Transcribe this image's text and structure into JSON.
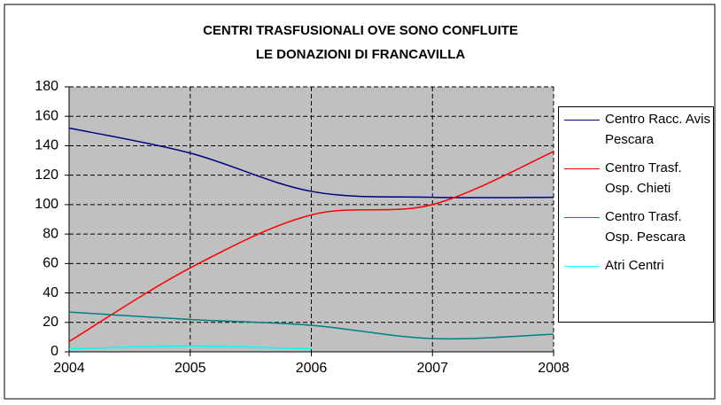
{
  "chart_data": {
    "type": "line",
    "title": [
      "CENTRI TRASFUSIONALI OVE SONO CONFLUITE",
      "LE DONAZIONI DI FRANCAVILLA"
    ],
    "x": [
      2004,
      2005,
      2006,
      2007,
      2008
    ],
    "series": [
      {
        "name": "Centro Racc. Avis Pescara",
        "color": "#000080",
        "values": [
          152,
          135,
          109,
          105,
          105
        ]
      },
      {
        "name": "Centro Trasf. Osp. Chieti",
        "color": "#ff0000",
        "values": [
          7,
          57,
          93,
          100,
          136
        ]
      },
      {
        "name": "Centro Trasf. Osp. Pescara",
        "color": "#008080",
        "values": [
          27,
          22,
          18,
          9,
          12
        ]
      },
      {
        "name": "Atri Centri",
        "color": "#00ffff",
        "values": [
          2,
          4,
          2,
          null,
          null
        ]
      }
    ],
    "xlim": [
      2004,
      2008
    ],
    "xticks": [
      2004,
      2005,
      2006,
      2007,
      2008
    ],
    "ylim": [
      0,
      180
    ],
    "yticks": [
      0,
      20,
      40,
      60,
      80,
      100,
      120,
      140,
      160,
      180
    ],
    "grid": true,
    "plot_background": "#c0c0c0",
    "legend": "right"
  }
}
